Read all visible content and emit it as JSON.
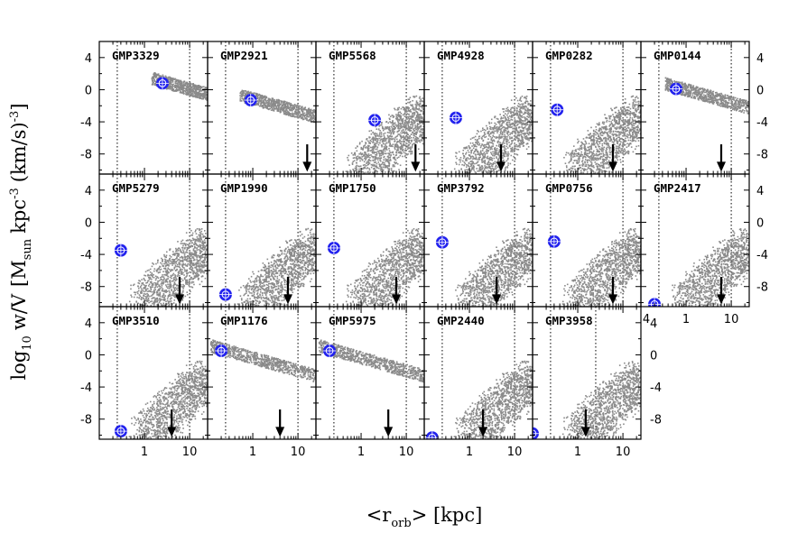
{
  "chart_data": {
    "type": "scatter",
    "xlabel": "<r_orb> [kpc]",
    "xlabel_parts": {
      "open": "<r",
      "sub": "orb",
      "close": "> [kpc]"
    },
    "ylabel_parts": {
      "log": "log",
      "log_sub": "10",
      "wv": "w/V",
      "m": "[M",
      "m_sub": "sun",
      "unit": "kpc",
      "unit_sup": "-3",
      "kms": "(km/s)",
      "kms_sup": "-3",
      "close": "]"
    },
    "x_scale": "log",
    "xlim": [
      0.1,
      25
    ],
    "ylim": [
      -10.5,
      6
    ],
    "y_ticks": [
      4,
      0,
      -4,
      -8
    ],
    "x_ticks": [
      1,
      10
    ],
    "x_ticks_labels": [
      "1",
      "10"
    ],
    "extra_x_label": "4",
    "marker_color": "#2222ee",
    "cloud_color": "#8a8a8a",
    "panels": [
      {
        "name": "GMP3329",
        "shape": "flat",
        "marker": [
          2.5,
          0.8
        ],
        "arrow_x": null,
        "vlines": [
          0.25,
          10
        ]
      },
      {
        "name": "GMP2921",
        "shape": "flat",
        "marker": [
          0.9,
          -1.3
        ],
        "arrow_x": 16,
        "vlines": [
          0.25,
          10
        ]
      },
      {
        "name": "GMP5568",
        "shape": "cloud",
        "marker": [
          2.0,
          -3.8
        ],
        "arrow_x": 16,
        "vlines": [
          0.25,
          10
        ]
      },
      {
        "name": "GMP4928",
        "shape": "cloud",
        "marker": [
          0.5,
          -3.5
        ],
        "arrow_x": 5,
        "vlines": [
          0.25,
          10
        ]
      },
      {
        "name": "GMP0282",
        "shape": "cloud",
        "marker": [
          0.35,
          -2.5
        ],
        "arrow_x": 6,
        "vlines": [
          0.25,
          10
        ]
      },
      {
        "name": "GMP0144",
        "shape": "flat",
        "marker": [
          0.6,
          0.1
        ],
        "arrow_x": 6,
        "vlines": [
          0.25,
          10
        ]
      },
      {
        "name": "GMP5279",
        "shape": "cloud",
        "marker": [
          0.3,
          -3.5
        ],
        "arrow_x": 6,
        "vlines": [
          0.25,
          10
        ]
      },
      {
        "name": "GMP1990",
        "shape": "cloud",
        "marker": [
          0.25,
          -9.0
        ],
        "arrow_x": 6,
        "vlines": [
          0.25,
          10
        ]
      },
      {
        "name": "GMP1750",
        "shape": "cloud",
        "marker": [
          0.25,
          -3.2
        ],
        "arrow_x": 6,
        "vlines": [
          0.25,
          10
        ]
      },
      {
        "name": "GMP3792",
        "shape": "cloud",
        "marker": [
          0.25,
          -2.5
        ],
        "arrow_x": 4,
        "vlines": [
          0.25,
          10
        ]
      },
      {
        "name": "GMP0756",
        "shape": "cloud",
        "marker": [
          0.3,
          -2.4
        ],
        "arrow_x": 6,
        "vlines": [
          0.25,
          10
        ]
      },
      {
        "name": "GMP2417",
        "shape": "cloud",
        "marker": [
          0.2,
          -10.2
        ],
        "arrow_x": 6,
        "vlines": [
          0.25,
          10
        ]
      },
      {
        "name": "GMP3510",
        "shape": "cloud",
        "marker": [
          0.3,
          -9.5
        ],
        "arrow_x": 4,
        "vlines": [
          0.25,
          10
        ]
      },
      {
        "name": "GMP1176",
        "shape": "flat",
        "marker": [
          0.2,
          0.5
        ],
        "arrow_x": 4,
        "vlines": [
          0.25,
          10
        ]
      },
      {
        "name": "GMP5975",
        "shape": "flat",
        "marker": [
          0.2,
          0.5
        ],
        "arrow_x": 4,
        "vlines": [
          0.25,
          10
        ]
      },
      {
        "name": "GMP2440",
        "shape": "cloud",
        "marker": [
          0.15,
          -10.3
        ],
        "arrow_x": 2,
        "vlines": [
          0.25,
          10
        ]
      },
      {
        "name": "GMP3958",
        "shape": "cloud",
        "marker": [
          0.1,
          -9.8
        ],
        "arrow_x": 1.5,
        "vlines": [
          0.25,
          2.5
        ]
      }
    ]
  }
}
